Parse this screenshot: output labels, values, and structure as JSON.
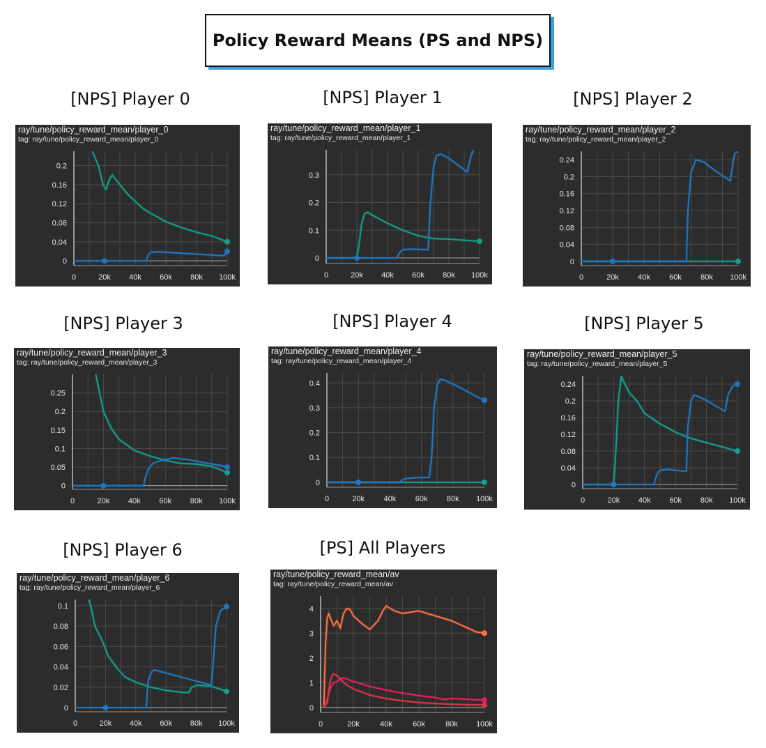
{
  "page": {
    "title": "Policy Reward Means (PS and NPS)"
  },
  "colors": {
    "blue": "#1f77c4",
    "teal": "#12a089",
    "orange": "#ff7043",
    "pink": "#e91e63",
    "red": "#dc3545",
    "panel_bg": "#2c2c2c"
  },
  "chart_data": [
    {
      "type": "line",
      "label": "[NPS] Player 0",
      "title": "ray/tune/policy_reward_mean/player_0",
      "tag": "tag: ray/tune/policy_reward_mean/player_0",
      "xlim": [
        0,
        100000
      ],
      "ylim": [
        -0.01,
        0.23
      ],
      "xticks": [
        0,
        20000,
        40000,
        60000,
        80000,
        100000
      ],
      "xtick_labels": [
        "0",
        "20k",
        "40k",
        "60k",
        "80k",
        "100k"
      ],
      "yticks": [
        0,
        0.04,
        0.08,
        0.12,
        0.16,
        0.2
      ],
      "ytick_labels": [
        "0",
        "0.04",
        "0.08",
        "0.12",
        "0.16",
        "0.2"
      ],
      "series": [
        {
          "color": "teal",
          "x": [
            12000,
            16000,
            19000,
            21000,
            23000,
            25000,
            30000,
            35000,
            40000,
            45000,
            50000,
            60000,
            70000,
            80000,
            90000,
            100000
          ],
          "y": [
            0.23,
            0.2,
            0.16,
            0.15,
            0.17,
            0.18,
            0.16,
            0.14,
            0.125,
            0.11,
            0.1,
            0.082,
            0.07,
            0.06,
            0.052,
            0.04
          ]
        },
        {
          "color": "blue",
          "x": [
            0,
            20000,
            40000,
            47000,
            48500,
            50000,
            55000,
            70000,
            85000,
            98000,
            100000
          ],
          "y": [
            0,
            0,
            0,
            0,
            0.012,
            0.018,
            0.019,
            0.016,
            0.013,
            0.011,
            0.02
          ]
        }
      ],
      "markers": [
        {
          "color": "blue",
          "x": 20000,
          "y": 0
        },
        {
          "color": "teal",
          "x": 100000,
          "y": 0.04
        },
        {
          "color": "blue",
          "x": 100000,
          "y": 0.02
        }
      ]
    },
    {
      "type": "line",
      "label": "[NPS] Player 1",
      "title": "ray/tune/policy_reward_mean/player_1",
      "tag": "tag: ray/tune/policy_reward_mean/player_1",
      "xlim": [
        0,
        100000
      ],
      "ylim": [
        -0.02,
        0.39
      ],
      "xticks": [
        0,
        20000,
        40000,
        60000,
        80000,
        100000
      ],
      "xtick_labels": [
        "0",
        "20k",
        "40k",
        "60k",
        "80k",
        "100k"
      ],
      "yticks": [
        0,
        0.1,
        0.2,
        0.3
      ],
      "ytick_labels": [
        "0",
        "0.1",
        "0.2",
        "0.3"
      ],
      "series": [
        {
          "color": "teal",
          "x": [
            0,
            20000,
            21500,
            23000,
            25000,
            27000,
            30000,
            40000,
            50000,
            60000,
            70000,
            80000,
            90000,
            100000
          ],
          "y": [
            0,
            0,
            0.05,
            0.12,
            0.16,
            0.165,
            0.155,
            0.125,
            0.1,
            0.08,
            0.07,
            0.068,
            0.064,
            0.06
          ]
        },
        {
          "color": "blue",
          "x": [
            0,
            20000,
            46000,
            48000,
            50000,
            55000,
            65000,
            66500,
            68000,
            70000,
            72000,
            75000,
            80000,
            92000,
            94000,
            96000
          ],
          "y": [
            0,
            0,
            0,
            0.02,
            0.03,
            0.032,
            0.03,
            0.03,
            0.2,
            0.33,
            0.37,
            0.375,
            0.36,
            0.31,
            0.36,
            0.39
          ]
        }
      ],
      "markers": [
        {
          "color": "blue",
          "x": 20000,
          "y": 0
        },
        {
          "color": "teal",
          "x": 100000,
          "y": 0.06
        }
      ]
    },
    {
      "type": "line",
      "label": "[NPS] Player 2",
      "title": "ray/tune/policy_reward_mean/player_2",
      "tag": "tag: ray/tune/policy_reward_mean/player_2",
      "xlim": [
        0,
        100000
      ],
      "ylim": [
        -0.01,
        0.26
      ],
      "xticks": [
        0,
        20000,
        40000,
        60000,
        80000,
        100000
      ],
      "xtick_labels": [
        "0",
        "20k",
        "40k",
        "60k",
        "80k",
        "100k"
      ],
      "yticks": [
        0,
        0.04,
        0.08,
        0.12,
        0.16,
        0.2,
        0.24
      ],
      "ytick_labels": [
        "0",
        "0.04",
        "0.08",
        "0.12",
        "0.16",
        "0.2",
        "0.24"
      ],
      "series": [
        {
          "color": "teal",
          "x": [
            0,
            20000,
            40000,
            60000,
            80000,
            100000
          ],
          "y": [
            0,
            0,
            0,
            0,
            0,
            0
          ]
        },
        {
          "color": "blue",
          "x": [
            0,
            20000,
            66000,
            67000,
            68000,
            70000,
            73000,
            78000,
            85000,
            95000,
            97000,
            98000,
            100000
          ],
          "y": [
            0,
            0,
            0,
            0,
            0.12,
            0.21,
            0.24,
            0.235,
            0.215,
            0.19,
            0.24,
            0.255,
            0.26
          ]
        }
      ],
      "markers": [
        {
          "color": "blue",
          "x": 20000,
          "y": 0
        },
        {
          "color": "teal",
          "x": 100000,
          "y": 0
        }
      ]
    },
    {
      "type": "line",
      "label": "[NPS] Player 3",
      "title": "ray/tune/policy_reward_mean/player_3",
      "tag": "tag: ray/tune/policy_reward_mean/player_3",
      "xlim": [
        0,
        100000
      ],
      "ylim": [
        -0.01,
        0.3
      ],
      "xticks": [
        0,
        20000,
        40000,
        60000,
        80000,
        100000
      ],
      "xtick_labels": [
        "0",
        "20k",
        "40k",
        "60k",
        "80k",
        "100k"
      ],
      "yticks": [
        0,
        0.05,
        0.1,
        0.15,
        0.2,
        0.25
      ],
      "ytick_labels": [
        "0",
        "0.05",
        "0.1",
        "0.15",
        "0.2",
        "0.25"
      ],
      "series": [
        {
          "color": "teal",
          "x": [
            15000,
            18000,
            20000,
            25000,
            30000,
            35000,
            40000,
            50000,
            60000,
            70000,
            80000,
            90000,
            100000
          ],
          "y": [
            0.3,
            0.24,
            0.2,
            0.155,
            0.125,
            0.11,
            0.095,
            0.08,
            0.068,
            0.06,
            0.058,
            0.052,
            0.035
          ]
        },
        {
          "color": "blue",
          "x": [
            0,
            20000,
            46000,
            47000,
            49000,
            52000,
            55000,
            65000,
            75000,
            85000,
            95000,
            100000
          ],
          "y": [
            0,
            0,
            0,
            0.02,
            0.045,
            0.06,
            0.065,
            0.075,
            0.07,
            0.062,
            0.055,
            0.05
          ]
        }
      ],
      "markers": [
        {
          "color": "blue",
          "x": 20000,
          "y": 0
        },
        {
          "color": "blue",
          "x": 100000,
          "y": 0.05
        },
        {
          "color": "teal",
          "x": 100000,
          "y": 0.035
        }
      ]
    },
    {
      "type": "line",
      "label": "[NPS] Player 4",
      "title": "ray/tune/policy_reward_mean/player_4",
      "tag": "tag: ray/tune/policy_reward_mean/player_4",
      "xlim": [
        0,
        100000
      ],
      "ylim": [
        -0.02,
        0.44
      ],
      "xticks": [
        0,
        20000,
        40000,
        60000,
        80000,
        100000
      ],
      "xtick_labels": [
        "0",
        "20k",
        "40k",
        "60k",
        "80k",
        "100k"
      ],
      "yticks": [
        0,
        0.1,
        0.2,
        0.3,
        0.4
      ],
      "ytick_labels": [
        "0",
        "0.1",
        "0.2",
        "0.3",
        "0.4"
      ],
      "series": [
        {
          "color": "teal",
          "x": [
            0,
            20000,
            40000,
            60000,
            80000,
            100000
          ],
          "y": [
            0,
            0,
            0,
            0,
            0,
            0
          ]
        },
        {
          "color": "blue",
          "x": [
            0,
            20000,
            46000,
            48000,
            50000,
            55000,
            65000,
            66500,
            68000,
            70000,
            72000,
            75000,
            85000,
            95000,
            100000
          ],
          "y": [
            0,
            0,
            0,
            0.01,
            0.015,
            0.018,
            0.02,
            0.1,
            0.3,
            0.39,
            0.415,
            0.41,
            0.38,
            0.345,
            0.33
          ]
        }
      ],
      "markers": [
        {
          "color": "blue",
          "x": 20000,
          "y": 0
        },
        {
          "color": "blue",
          "x": 100000,
          "y": 0.33
        },
        {
          "color": "teal",
          "x": 100000,
          "y": 0
        }
      ]
    },
    {
      "type": "line",
      "label": "[NPS] Player 5",
      "title": "ray/tune/policy_reward_mean/player_5",
      "tag": "tag: ray/tune/policy_reward_mean/player_5",
      "xlim": [
        0,
        100000
      ],
      "ylim": [
        -0.01,
        0.26
      ],
      "xticks": [
        0,
        20000,
        40000,
        60000,
        80000,
        100000
      ],
      "xtick_labels": [
        "0",
        "20k",
        "40k",
        "60k",
        "80k",
        "100k"
      ],
      "yticks": [
        0,
        0.04,
        0.08,
        0.12,
        0.16,
        0.2,
        0.24
      ],
      "ytick_labels": [
        "0",
        "0.04",
        "0.08",
        "0.12",
        "0.16",
        "0.2",
        "0.24"
      ],
      "series": [
        {
          "color": "teal",
          "x": [
            0,
            20000,
            21000,
            23000,
            25000,
            26000,
            30000,
            35000,
            40000,
            50000,
            60000,
            70000,
            80000,
            90000,
            100000
          ],
          "y": [
            0,
            0,
            0.05,
            0.2,
            0.26,
            0.25,
            0.22,
            0.2,
            0.17,
            0.145,
            0.125,
            0.11,
            0.1,
            0.09,
            0.08
          ]
        },
        {
          "color": "blue",
          "x": [
            0,
            20000,
            46000,
            48000,
            50000,
            55000,
            65000,
            67000,
            68000,
            70000,
            72000,
            78000,
            85000,
            92000,
            94000,
            97000,
            100000
          ],
          "y": [
            0,
            0,
            0,
            0.025,
            0.034,
            0.036,
            0.032,
            0.032,
            0.14,
            0.2,
            0.214,
            0.205,
            0.19,
            0.175,
            0.215,
            0.235,
            0.24
          ]
        }
      ],
      "markers": [
        {
          "color": "blue",
          "x": 20000,
          "y": 0
        },
        {
          "color": "blue",
          "x": 100000,
          "y": 0.24
        },
        {
          "color": "teal",
          "x": 100000,
          "y": 0.08
        }
      ]
    },
    {
      "type": "line",
      "label": "[NPS] Player 6",
      "title": "ray/tune/policy_reward_mean/player_6",
      "tag": "tag: ray/tune/policy_reward_mean/player_6",
      "xlim": [
        0,
        100000
      ],
      "ylim": [
        -0.004,
        0.106
      ],
      "xticks": [
        0,
        20000,
        40000,
        60000,
        80000,
        100000
      ],
      "xtick_labels": [
        "0",
        "20k",
        "40k",
        "60k",
        "80k",
        "100k"
      ],
      "yticks": [
        0,
        0.02,
        0.04,
        0.06,
        0.08,
        0.1
      ],
      "ytick_labels": [
        "0",
        "0.02",
        "0.04",
        "0.06",
        "0.08",
        "0.1"
      ],
      "series": [
        {
          "color": "teal",
          "x": [
            9000,
            11000,
            13000,
            18000,
            22000,
            28000,
            33000,
            40000,
            50000,
            60000,
            70000,
            75000,
            77000,
            80000,
            90000,
            100000
          ],
          "y": [
            0.106,
            0.095,
            0.08,
            0.065,
            0.05,
            0.038,
            0.03,
            0.025,
            0.02,
            0.017,
            0.015,
            0.015,
            0.02,
            0.022,
            0.021,
            0.016
          ]
        },
        {
          "color": "blue",
          "x": [
            0,
            20000,
            47000,
            48000,
            50000,
            52000,
            55000,
            65000,
            75000,
            85000,
            90000,
            91500,
            93000,
            96000,
            100000
          ],
          "y": [
            0,
            0,
            0,
            0.025,
            0.034,
            0.037,
            0.036,
            0.032,
            0.028,
            0.024,
            0.022,
            0.05,
            0.08,
            0.095,
            0.099
          ]
        }
      ],
      "markers": [
        {
          "color": "blue",
          "x": 20000,
          "y": 0
        },
        {
          "color": "blue",
          "x": 100000,
          "y": 0.099
        },
        {
          "color": "teal",
          "x": 100000,
          "y": 0.016
        }
      ]
    },
    {
      "type": "line",
      "label": "[PS] All Players",
      "title": "ray/tune/policy_reward_mean/av",
      "tag": "tag: ray/tune/policy_reward_mean/av",
      "xlim": [
        0,
        100000
      ],
      "ylim": [
        -0.2,
        4.5
      ],
      "xticks": [
        0,
        20000,
        40000,
        60000,
        80000,
        100000
      ],
      "xtick_labels": [
        "0",
        "20k",
        "40k",
        "60k",
        "80k",
        "100k"
      ],
      "yticks": [
        0,
        1,
        2,
        3,
        4
      ],
      "ytick_labels": [
        "0",
        "1",
        "2",
        "3",
        "4"
      ],
      "series": [
        {
          "color": "orange",
          "x": [
            2000,
            3000,
            4000,
            5000,
            6000,
            8000,
            10000,
            12000,
            14000,
            16000,
            18000,
            20000,
            25000,
            30000,
            35000,
            38000,
            40000,
            45000,
            50000,
            55000,
            60000,
            65000,
            70000,
            75000,
            80000,
            85000,
            90000,
            95000,
            100000
          ],
          "y": [
            0,
            2.5,
            3.6,
            3.8,
            3.6,
            3.3,
            3.5,
            3.2,
            3.8,
            4.0,
            3.95,
            3.7,
            3.4,
            3.15,
            3.5,
            3.9,
            4.1,
            3.9,
            3.8,
            3.85,
            3.9,
            3.8,
            3.7,
            3.6,
            3.5,
            3.35,
            3.2,
            3.05,
            3.0
          ]
        },
        {
          "color": "pink",
          "x": [
            2000,
            4000,
            6000,
            8000,
            10000,
            12000,
            14000,
            16000,
            20000,
            25000,
            30000,
            40000,
            50000,
            60000,
            70000,
            75000,
            80000,
            90000,
            100000
          ],
          "y": [
            0,
            0.3,
            0.8,
            1.0,
            1.05,
            1.15,
            1.2,
            1.15,
            1.05,
            0.95,
            0.85,
            0.7,
            0.58,
            0.48,
            0.4,
            0.32,
            0.36,
            0.33,
            0.3
          ]
        },
        {
          "color": "red",
          "x": [
            2000,
            4000,
            5000,
            6000,
            7000,
            8000,
            10000,
            12000,
            15000,
            20000,
            30000,
            40000,
            50000,
            60000,
            70000,
            80000,
            90000,
            100000
          ],
          "y": [
            0,
            0.2,
            0.7,
            1.1,
            1.3,
            1.35,
            1.3,
            1.15,
            0.95,
            0.75,
            0.5,
            0.36,
            0.27,
            0.2,
            0.16,
            0.13,
            0.11,
            0.1
          ]
        }
      ],
      "markers": [
        {
          "color": "orange",
          "x": 100000,
          "y": 3.0
        },
        {
          "color": "pink",
          "x": 100000,
          "y": 0.3
        },
        {
          "color": "red",
          "x": 100000,
          "y": 0.1
        }
      ]
    }
  ]
}
